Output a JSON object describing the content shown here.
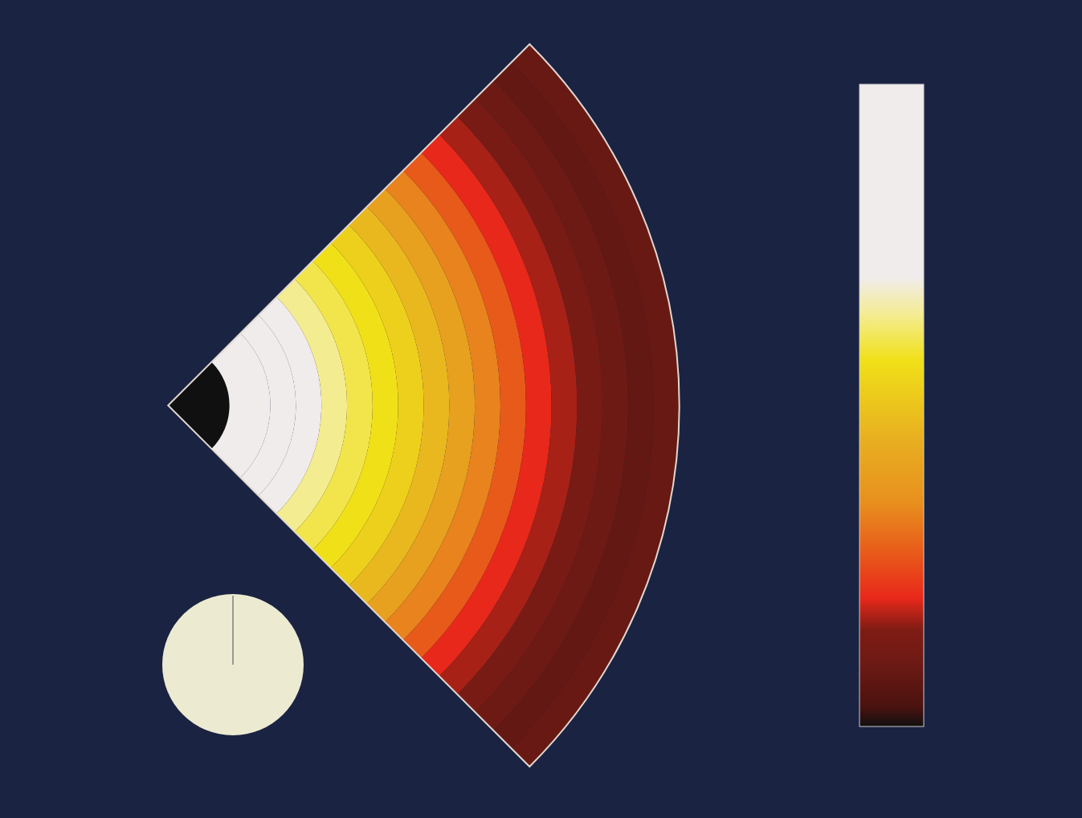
{
  "chart_data": {
    "type": "polar_heatmap",
    "radii": [
      0,
      0.12,
      0.2,
      0.25,
      0.3,
      0.35,
      0.4,
      0.45,
      0.5,
      0.55,
      0.6,
      0.65,
      0.7,
      0.75,
      0.8,
      0.85,
      0.9,
      0.95,
      1.0
    ],
    "values": [
      0,
      0.85,
      0.8,
      0.7,
      0.64,
      0.6,
      0.57,
      0.53,
      0.47,
      0.4,
      0.33,
      0.27,
      0.2,
      0.17,
      0.13,
      0.1,
      0.08,
      0.09
    ],
    "colorbar_range": [
      0,
      1
    ],
    "tick_labels": false,
    "time_fraction": 0
  }
}
